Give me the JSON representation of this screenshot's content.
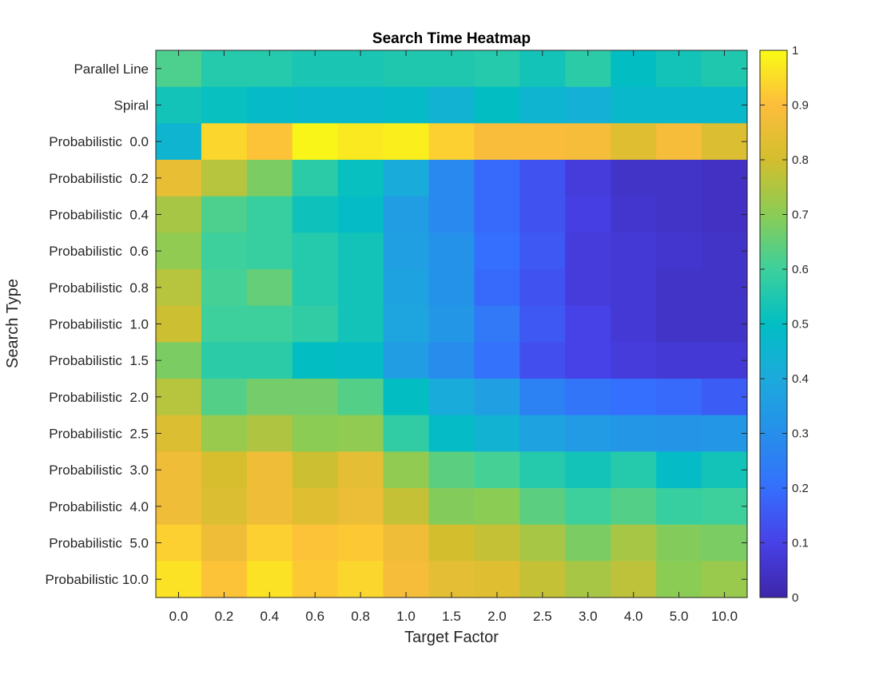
{
  "chart_data": {
    "type": "heatmap",
    "title": "Search Time Heatmap",
    "xlabel": "Target Factor",
    "ylabel": "Search Type",
    "x_categories": [
      "0.0",
      "0.2",
      "0.4",
      "0.6",
      "0.8",
      "1.0",
      "1.5",
      "2.0",
      "2.5",
      "3.0",
      "4.0",
      "5.0",
      "10.0"
    ],
    "y_categories": [
      "Parallel Line",
      "Spiral",
      "Probabilistic  0.0",
      "Probabilistic  0.2",
      "Probabilistic  0.4",
      "Probabilistic  0.6",
      "Probabilistic  0.8",
      "Probabilistic  1.0",
      "Probabilistic  1.5",
      "Probabilistic  2.0",
      "Probabilistic  2.5",
      "Probabilistic  3.0",
      "Probabilistic  4.0",
      "Probabilistic  5.0",
      "Probabilistic 10.0"
    ],
    "values": [
      [
        0.62,
        0.56,
        0.56,
        0.54,
        0.54,
        0.55,
        0.55,
        0.56,
        0.53,
        0.57,
        0.5,
        0.53,
        0.55
      ],
      [
        0.53,
        0.51,
        0.48,
        0.47,
        0.47,
        0.48,
        0.44,
        0.5,
        0.45,
        0.43,
        0.47,
        0.47,
        0.47
      ],
      [
        0.45,
        0.94,
        0.91,
        0.99,
        0.97,
        0.98,
        0.93,
        0.89,
        0.89,
        0.88,
        0.83,
        0.88,
        0.82
      ],
      [
        0.85,
        0.76,
        0.68,
        0.57,
        0.51,
        0.41,
        0.28,
        0.19,
        0.14,
        0.08,
        0.05,
        0.05,
        0.04
      ],
      [
        0.74,
        0.62,
        0.59,
        0.52,
        0.49,
        0.35,
        0.28,
        0.19,
        0.14,
        0.09,
        0.06,
        0.05,
        0.04
      ],
      [
        0.71,
        0.6,
        0.59,
        0.56,
        0.53,
        0.36,
        0.31,
        0.2,
        0.15,
        0.08,
        0.07,
        0.06,
        0.05
      ],
      [
        0.76,
        0.61,
        0.65,
        0.56,
        0.53,
        0.37,
        0.31,
        0.19,
        0.14,
        0.08,
        0.07,
        0.05,
        0.05
      ],
      [
        0.79,
        0.6,
        0.6,
        0.58,
        0.53,
        0.38,
        0.33,
        0.23,
        0.15,
        0.1,
        0.07,
        0.05,
        0.05
      ],
      [
        0.68,
        0.57,
        0.57,
        0.5,
        0.49,
        0.35,
        0.29,
        0.21,
        0.13,
        0.1,
        0.08,
        0.07,
        0.07
      ],
      [
        0.76,
        0.63,
        0.67,
        0.67,
        0.63,
        0.5,
        0.41,
        0.36,
        0.26,
        0.22,
        0.2,
        0.19,
        0.16
      ],
      [
        0.82,
        0.72,
        0.75,
        0.7,
        0.71,
        0.58,
        0.49,
        0.44,
        0.37,
        0.34,
        0.33,
        0.32,
        0.33
      ],
      [
        0.87,
        0.81,
        0.87,
        0.79,
        0.84,
        0.71,
        0.64,
        0.61,
        0.56,
        0.53,
        0.56,
        0.49,
        0.53
      ],
      [
        0.87,
        0.82,
        0.87,
        0.83,
        0.86,
        0.78,
        0.69,
        0.7,
        0.64,
        0.6,
        0.63,
        0.59,
        0.6
      ],
      [
        0.93,
        0.87,
        0.93,
        0.91,
        0.92,
        0.87,
        0.8,
        0.78,
        0.74,
        0.68,
        0.74,
        0.69,
        0.68
      ],
      [
        0.96,
        0.91,
        0.96,
        0.92,
        0.94,
        0.88,
        0.84,
        0.83,
        0.78,
        0.74,
        0.77,
        0.7,
        0.72
      ]
    ],
    "clim": [
      0,
      1
    ],
    "colormap": "parula",
    "colorbar": {
      "ticks": [
        0,
        0.1,
        0.2,
        0.3,
        0.4,
        0.5,
        0.6,
        0.7,
        0.8,
        0.9,
        1
      ],
      "tick_labels": [
        "0",
        "0.1",
        "0.2",
        "0.3",
        "0.4",
        "0.5",
        "0.6",
        "0.7",
        "0.8",
        "0.9",
        "1"
      ],
      "placement": "right"
    },
    "grid": false
  }
}
